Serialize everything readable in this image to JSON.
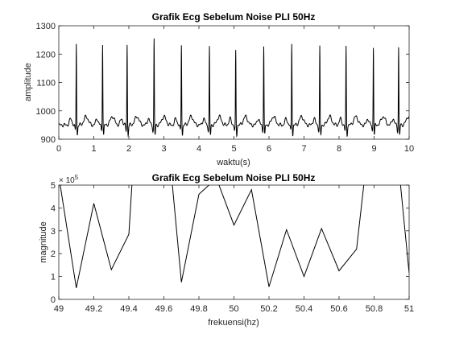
{
  "chart_data": [
    {
      "type": "line",
      "title": "Grafik Ecg Sebelum Noise PLI 50Hz",
      "xlabel": "waktu(s)",
      "ylabel": "amplitude",
      "xlim": [
        0,
        10
      ],
      "ylim": [
        900,
        1300
      ],
      "xticks": [
        "0",
        "1",
        "2",
        "3",
        "4",
        "5",
        "6",
        "7",
        "8",
        "9",
        "10"
      ],
      "yticks": [
        "900",
        "1000",
        "1100",
        "1200",
        "1300"
      ],
      "grid": false,
      "baseline": 950,
      "r_peak_times": [
        0.5,
        1.25,
        1.95,
        2.72,
        3.5,
        4.3,
        5.05,
        5.85,
        6.65,
        7.45,
        8.2,
        8.98,
        9.7
      ],
      "r_peak_values": [
        1240,
        1240,
        1235,
        1255,
        1235,
        1225,
        1210,
        1230,
        1240,
        1225,
        1225,
        1230,
        1225
      ],
      "color": "#000000"
    },
    {
      "type": "line",
      "title": "Grafik Ecg Sebelum Noise PLI 50Hz",
      "xlabel": "frekuensi(hz)",
      "ylabel": "magnitude",
      "exponent_label": "× 10^5",
      "exponent_base": "× 10",
      "exponent_power": "5",
      "xlim": [
        49,
        51
      ],
      "ylim": [
        0,
        5
      ],
      "xticks": [
        "49",
        "49.2",
        "49.4",
        "49.6",
        "49.8",
        "50",
        "50.2",
        "50.4",
        "50.6",
        "50.8",
        "51"
      ],
      "yticks": [
        "0",
        "1",
        "2",
        "3",
        "4",
        "5"
      ],
      "grid": false,
      "x": [
        49.0,
        49.1,
        49.2,
        49.3,
        49.4,
        49.45,
        49.6,
        49.7,
        49.8,
        49.9,
        50.0,
        50.1,
        50.2,
        50.3,
        50.4,
        50.5,
        50.6,
        50.7,
        50.8,
        50.9,
        51.0
      ],
      "y": [
        5.4,
        0.5,
        4.2,
        1.3,
        2.85,
        9.0,
        9.0,
        0.75,
        4.6,
        5.3,
        3.25,
        4.8,
        0.55,
        3.05,
        1.0,
        3.1,
        1.25,
        2.2,
        9.0,
        9.0,
        1.15
      ],
      "color": "#000000"
    }
  ]
}
